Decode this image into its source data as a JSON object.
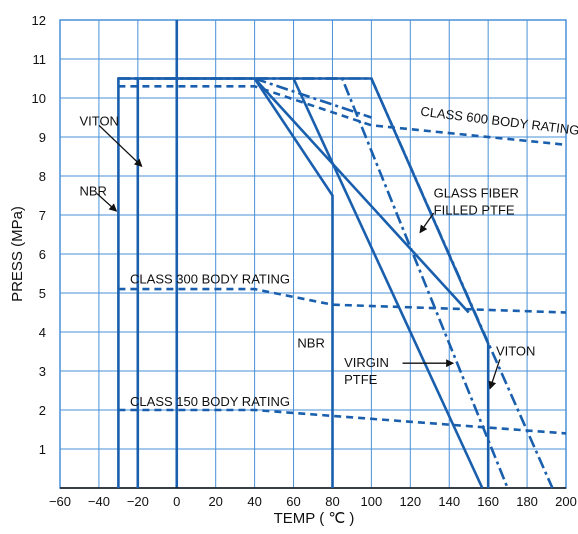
{
  "chart_data": {
    "type": "line",
    "xlabel": "TEMP ( ℃ )",
    "ylabel": "PRESS (MPa)",
    "xlim": [
      -60,
      200
    ],
    "ylim": [
      0,
      12
    ],
    "xticks": [
      -60,
      -40,
      -20,
      0,
      20,
      40,
      60,
      80,
      100,
      120,
      140,
      160,
      180,
      200
    ],
    "yticks": [
      1,
      2,
      3,
      4,
      5,
      6,
      7,
      8,
      9,
      10,
      11,
      12
    ],
    "grid": true,
    "colors": {
      "line": "#1a5fad",
      "grid": "#4a90d9",
      "zero_line": "#1a5fad"
    },
    "series": [
      {
        "name": "CLASS 600 BODY RATING",
        "style": "dashed",
        "points": [
          [
            -30,
            10.3
          ],
          [
            40,
            10.3
          ],
          [
            100,
            9.3
          ],
          [
            200,
            8.8
          ]
        ]
      },
      {
        "name": "CLASS 300 BODY RATING",
        "style": "dashed",
        "points": [
          [
            -30,
            5.1
          ],
          [
            40,
            5.1
          ],
          [
            80,
            4.7
          ],
          [
            200,
            4.5
          ]
        ]
      },
      {
        "name": "CLASS 150 BODY RATING",
        "style": "dashed",
        "points": [
          [
            -30,
            2.0
          ],
          [
            40,
            2.0
          ],
          [
            80,
            1.85
          ],
          [
            200,
            1.4
          ]
        ]
      },
      {
        "name": "NBR",
        "style": "solid",
        "points": [
          [
            -30,
            0
          ],
          [
            -30,
            10.5
          ],
          [
            40,
            10.5
          ],
          [
            80,
            7.5
          ],
          [
            80,
            0
          ]
        ]
      },
      {
        "name": "VITON",
        "style": "solid",
        "points": [
          [
            -20,
            0
          ],
          [
            -20,
            10.5
          ],
          [
            100,
            10.5
          ],
          [
            160,
            3.7
          ],
          [
            160,
            0
          ]
        ]
      },
      {
        "name": "GLASS FIBER FILLED PTFE",
        "style": "dashdot",
        "points": [
          [
            -30,
            10.5
          ],
          [
            100,
            10.5
          ],
          [
            193,
            0
          ]
        ]
      },
      {
        "name": "VIRGIN PTFE",
        "style": "dashdot",
        "points": [
          [
            -30,
            10.5
          ],
          [
            85,
            10.5
          ],
          [
            170,
            0
          ]
        ]
      },
      {
        "name": "",
        "style": "solid",
        "points": [
          [
            40,
            10.5
          ],
          [
            150,
            4.5
          ]
        ]
      },
      {
        "name": "",
        "style": "solid",
        "points": [
          [
            60,
            10.5
          ],
          [
            157,
            0
          ]
        ]
      },
      {
        "name": "",
        "style": "dashdot",
        "points": [
          [
            40,
            10.5
          ],
          [
            100,
            9.5
          ]
        ]
      }
    ],
    "annotations": [
      {
        "lines": [
          "VITON"
        ],
        "x": -50,
        "y": 9.3
      },
      {
        "lines": [
          "NBR"
        ],
        "x": -50,
        "y": 7.5
      },
      {
        "lines": [
          "CLASS 600 BODY RATING"
        ],
        "x": 125,
        "y": 9.55
      },
      {
        "lines": [
          "CLASS 300 BODY RATING"
        ],
        "x": -24,
        "y": 5.25
      },
      {
        "lines": [
          "CLASS 150 BODY RATING"
        ],
        "x": -24,
        "y": 2.1
      },
      {
        "lines": [
          "GLASS FIBER",
          "FILLED PTFE"
        ],
        "x": 132,
        "y": 7.45
      },
      {
        "lines": [
          "NBR"
        ],
        "x": 62,
        "y": 3.6
      },
      {
        "lines": [
          "VIRGIN",
          "PTFE"
        ],
        "x": 86,
        "y": 3.1
      },
      {
        "lines": [
          "VITON"
        ],
        "x": 164,
        "y": 3.4
      }
    ],
    "arrows": [
      {
        "from": [
          -40,
          9.3
        ],
        "to": [
          -18,
          8.25
        ]
      },
      {
        "from": [
          -41,
          7.55
        ],
        "to": [
          -31,
          7.1
        ]
      },
      {
        "from": [
          116,
          3.2
        ],
        "to": [
          142,
          3.2
        ]
      },
      {
        "from": [
          166,
          3.3
        ],
        "to": [
          161,
          2.55
        ]
      },
      {
        "from": [
          132,
          7.05
        ],
        "to": [
          125,
          6.55
        ]
      }
    ]
  }
}
